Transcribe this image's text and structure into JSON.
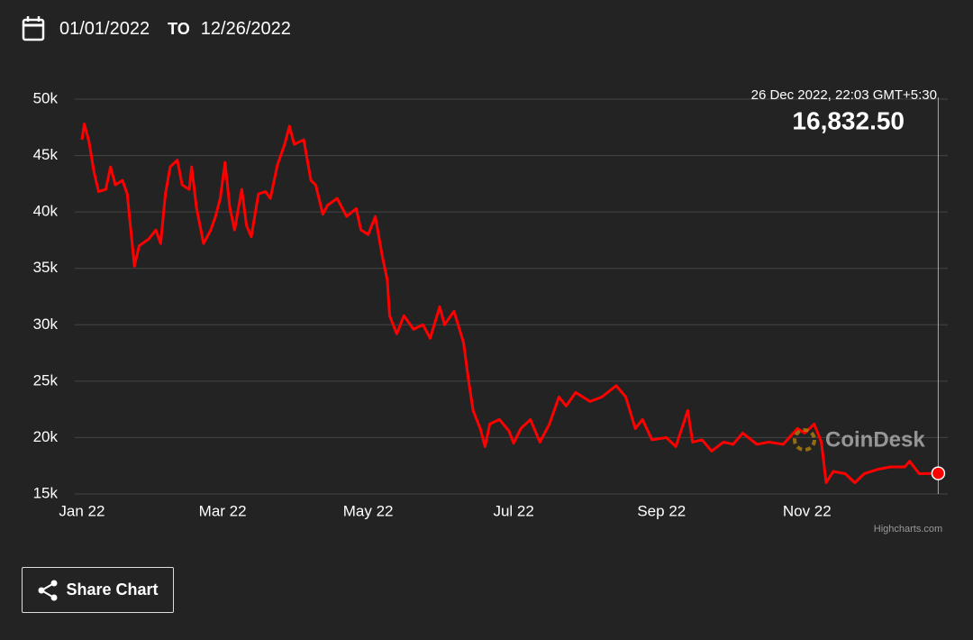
{
  "header": {
    "from": "01/01/2022",
    "to_label": "TO",
    "to": "12/26/2022"
  },
  "chart_data": {
    "type": "line",
    "x": [
      0,
      1,
      3,
      5,
      7,
      10,
      12,
      14,
      17,
      19,
      22,
      24,
      28,
      31,
      33,
      35,
      37,
      40,
      42,
      45,
      46,
      48,
      51,
      54,
      56,
      58,
      60,
      62,
      64,
      67,
      69,
      71,
      74,
      77,
      79,
      82,
      85,
      87,
      89,
      93,
      96,
      98,
      101,
      103,
      107,
      111,
      115,
      117,
      120,
      123,
      126,
      128,
      129,
      132,
      135,
      139,
      143,
      146,
      150,
      152,
      156,
      160,
      162,
      164,
      167,
      169,
      171,
      175,
      179,
      181,
      184,
      188,
      192,
      196,
      200,
      203,
      207,
      213,
      218,
      224,
      228,
      232,
      235,
      239,
      245,
      249,
      254,
      256,
      260,
      264,
      269,
      273,
      277,
      283,
      288,
      294,
      300,
      303,
      307,
      310,
      312,
      315,
      320,
      324,
      328,
      334,
      339,
      345,
      347,
      351,
      359
    ],
    "values": [
      46400,
      47800,
      46200,
      43600,
      41800,
      42000,
      44000,
      42400,
      42800,
      41600,
      35200,
      37000,
      37600,
      38400,
      37200,
      41600,
      44000,
      44600,
      42400,
      42000,
      44000,
      40400,
      37200,
      38400,
      39600,
      41200,
      44400,
      40400,
      38400,
      42000,
      38800,
      37800,
      41600,
      41800,
      41200,
      44200,
      46000,
      47600,
      46000,
      46400,
      42800,
      42400,
      39800,
      40600,
      41200,
      39600,
      40300,
      38400,
      38000,
      39600,
      36000,
      34000,
      30800,
      29200,
      30800,
      29600,
      30000,
      28800,
      31600,
      30000,
      31200,
      28400,
      25200,
      22400,
      20800,
      19200,
      21200,
      21600,
      20600,
      19500,
      20800,
      21600,
      19600,
      21200,
      23600,
      22800,
      24000,
      23200,
      23600,
      24600,
      23600,
      20800,
      21600,
      19800,
      20000,
      19200,
      22400,
      19600,
      19800,
      18800,
      19600,
      19400,
      20400,
      19400,
      19600,
      19400,
      20800,
      20400,
      21200,
      19600,
      16000,
      17000,
      16800,
      16000,
      16800,
      17200,
      17400,
      17400,
      17900,
      16800,
      16832.5
    ],
    "color": "#ff0000",
    "xlim": [
      -3,
      363
    ],
    "xticks": [
      {
        "value": 0,
        "label": "Jan 22"
      },
      {
        "value": 59,
        "label": "Mar 22"
      },
      {
        "value": 120,
        "label": "May 22"
      },
      {
        "value": 181,
        "label": "Jul 22"
      },
      {
        "value": 243,
        "label": "Sep 22"
      },
      {
        "value": 304,
        "label": "Nov 22"
      }
    ],
    "ylim": [
      15000,
      50000
    ],
    "yticks": [
      {
        "value": 15000,
        "label": "15k"
      },
      {
        "value": 20000,
        "label": "20k"
      },
      {
        "value": 25000,
        "label": "25k"
      },
      {
        "value": 30000,
        "label": "30k"
      },
      {
        "value": 35000,
        "label": "35k"
      },
      {
        "value": 40000,
        "label": "40k"
      },
      {
        "value": 45000,
        "label": "45k"
      },
      {
        "value": 50000,
        "label": "50k"
      }
    ],
    "grid": true,
    "tooltip": {
      "date": "26 Dec 2022, 22:03 GMT+5:30",
      "price": "16,832.50"
    },
    "watermark": "CoinDesk",
    "credits": "Highcharts.com"
  },
  "share_button": "Share Chart"
}
